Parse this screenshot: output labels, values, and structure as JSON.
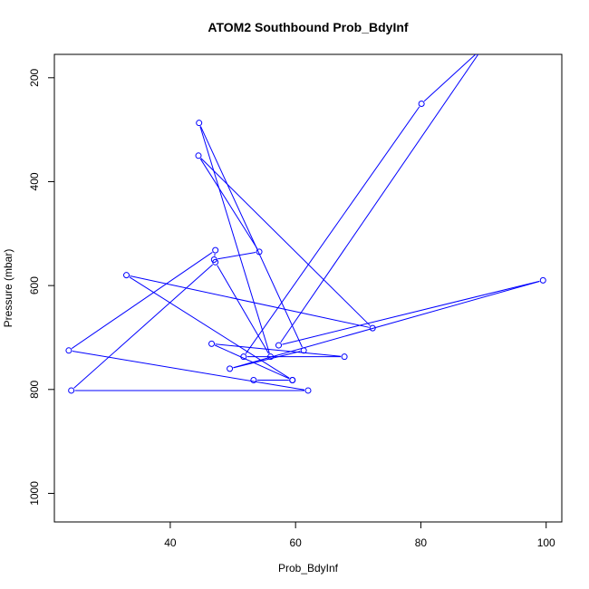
{
  "chart_data": {
    "type": "line",
    "title": "ATOM2 Southbound Prob_BdyInf",
    "xlabel": "Prob_BdyInf",
    "ylabel": "Pressure (mbar)",
    "xlim": [
      21.5,
      102.5
    ],
    "ylim": [
      1055,
      155
    ],
    "y_reversed": true,
    "grid": false,
    "x_ticks": [
      40,
      60,
      80,
      100
    ],
    "y_ticks": [
      200,
      400,
      600,
      800,
      1000
    ],
    "series_color": "#0000ff",
    "series": [
      {
        "x": [
          91.0,
          80.1,
          51.7,
          67.8,
          46.6,
          59.5,
          53.3,
          59.5,
          33.0,
          72.3,
          44.5,
          54.2,
          47.0,
          47.2,
          23.8,
          62.0,
          24.2,
          47.2,
          56.0,
          44.6,
          61.3,
          49.5,
          99.5,
          57.3,
          90.0
        ],
        "y": [
          130,
          250,
          737,
          737,
          712,
          782,
          782,
          782,
          580,
          682,
          350,
          535,
          550,
          532,
          725,
          802,
          802,
          555,
          737,
          287,
          725,
          760,
          590,
          715,
          140
        ]
      }
    ]
  }
}
